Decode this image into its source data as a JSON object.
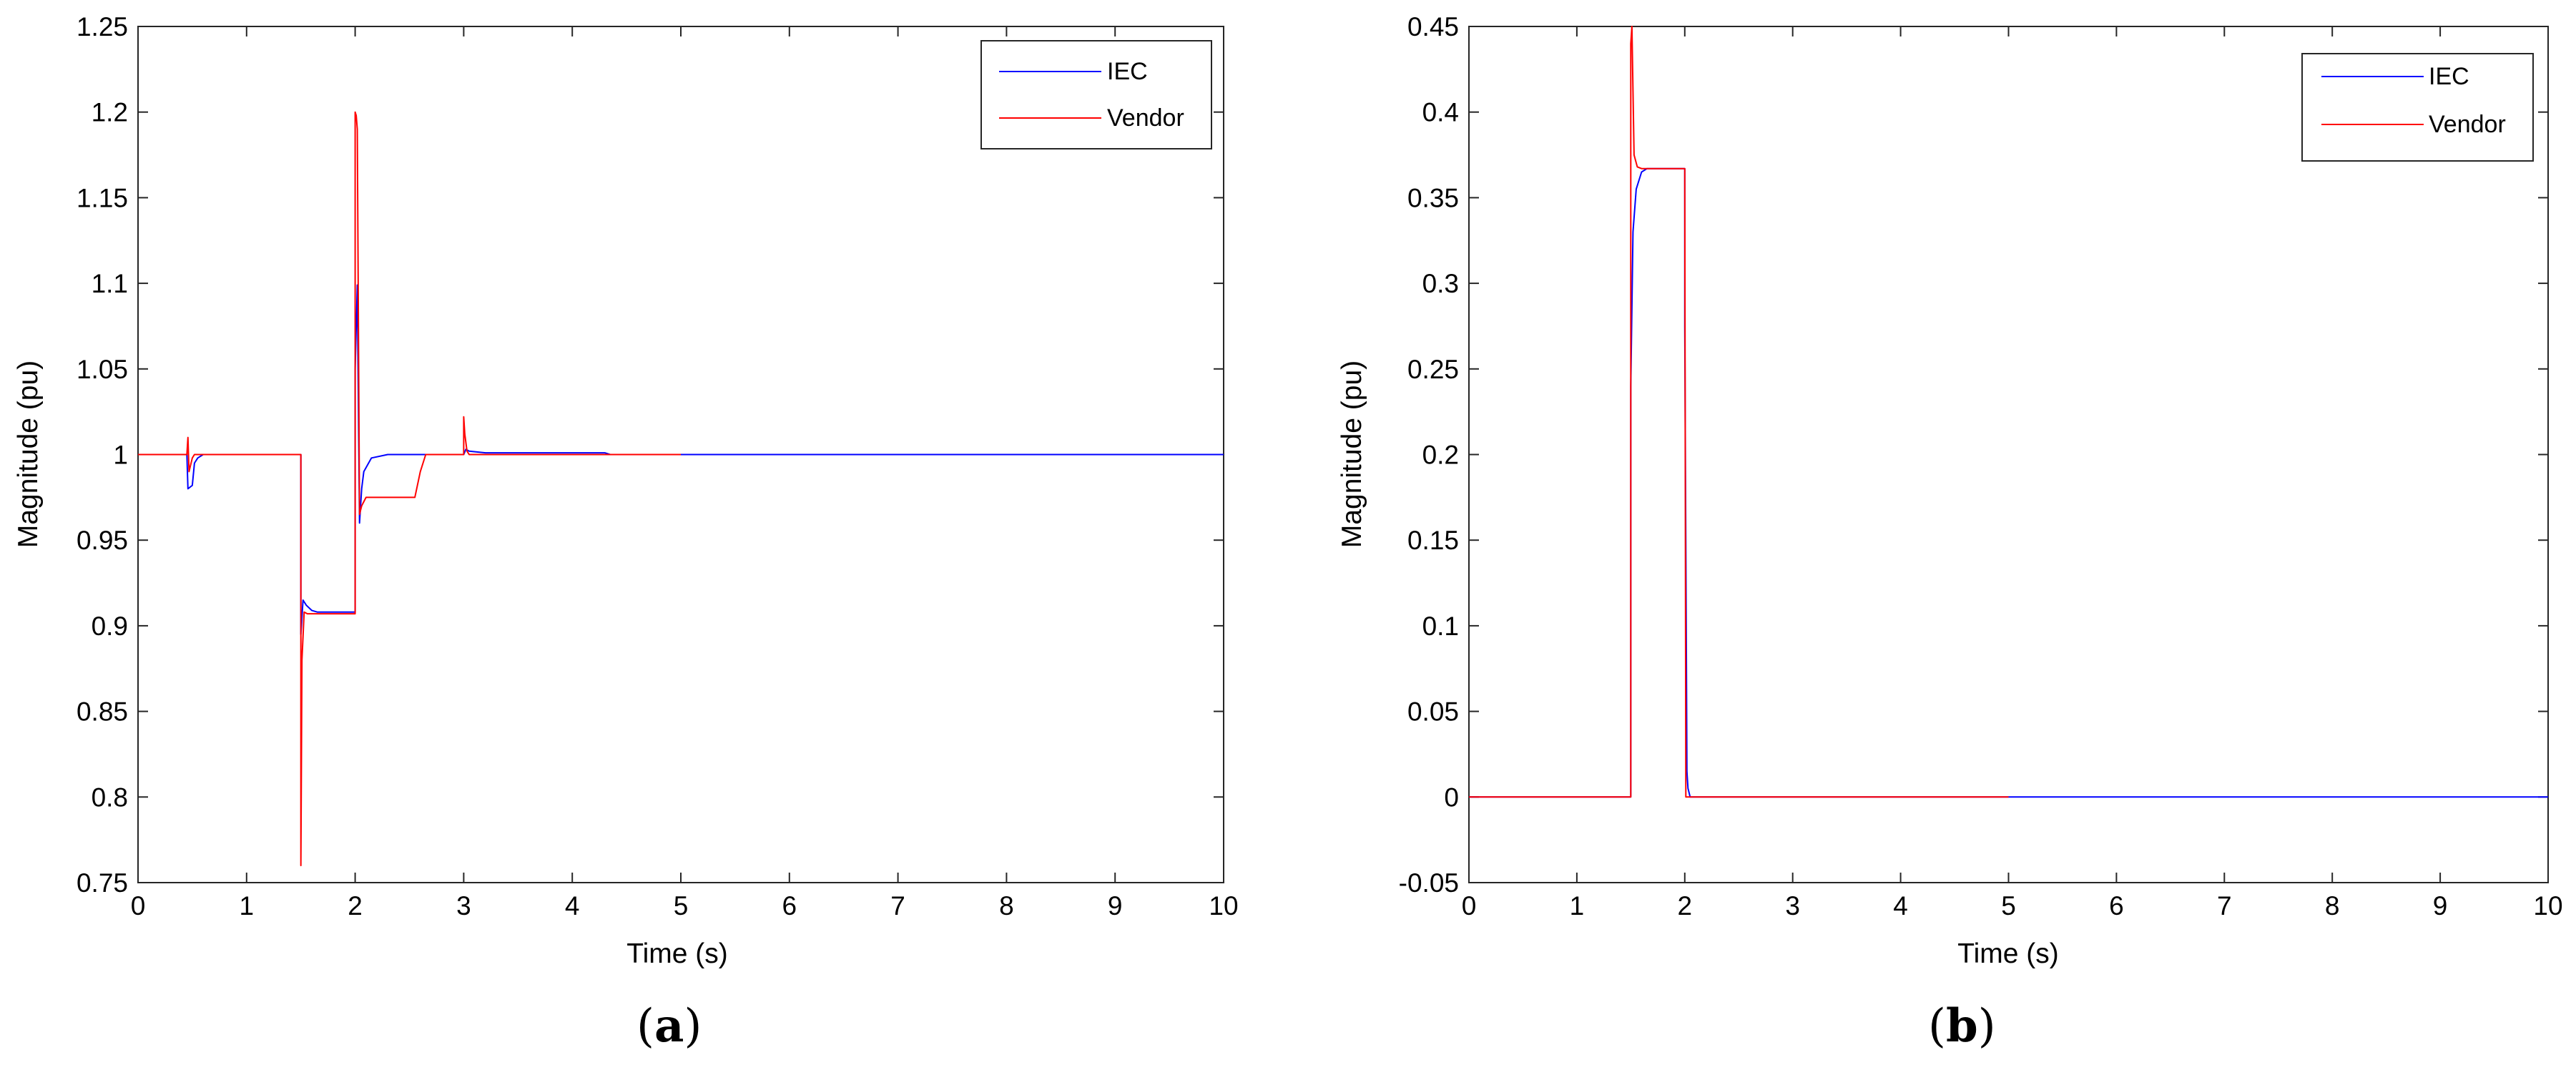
{
  "chart_data": [
    {
      "type": "line",
      "panel_label": "a",
      "xlabel": "Time (s)",
      "ylabel": "Magnitude (pu)",
      "xlim": [
        0,
        10
      ],
      "ylim": [
        0.75,
        1.25
      ],
      "xticks": [
        "0",
        "1",
        "2",
        "3",
        "4",
        "5",
        "6",
        "7",
        "8",
        "9",
        "10"
      ],
      "yticks": [
        "0.75",
        "0.8",
        "0.85",
        "0.9",
        "0.95",
        "1",
        "1.05",
        "1.1",
        "1.15",
        "1.2",
        "1.25"
      ],
      "grid": false,
      "legend": "top-right",
      "series": [
        {
          "name": "IEC",
          "color": "#0000ff",
          "x": [
            0,
            0.1,
            0.45,
            0.46,
            0.5,
            0.52,
            0.55,
            0.6,
            1.0,
            1.2,
            1.5,
            1.5,
            1.52,
            1.55,
            1.6,
            1.65,
            2.0,
            2.0,
            2.02,
            2.04,
            2.06,
            2.08,
            2.15,
            2.3,
            2.5,
            3.0,
            3.02,
            3.05,
            3.2,
            4.3,
            4.35,
            5.0,
            10.0
          ],
          "y": [
            1.0,
            1.0,
            1.0,
            0.98,
            0.982,
            0.995,
            0.998,
            1.0,
            1.0,
            1.0,
            1.0,
            0.895,
            0.915,
            0.912,
            0.909,
            0.908,
            0.908,
            1.05,
            1.099,
            0.96,
            0.98,
            0.99,
            0.998,
            1.0,
            1.0,
            1.0,
            1.003,
            1.002,
            1.001,
            1.001,
            1.0,
            1.0,
            1.0
          ]
        },
        {
          "name": "Vendor",
          "color": "#ff0000",
          "x": [
            0,
            0.45,
            0.46,
            0.47,
            0.5,
            0.52,
            0.55,
            1.0,
            1.5,
            1.5,
            1.51,
            1.53,
            1.56,
            1.6,
            1.65,
            2.0,
            2.0,
            2.01,
            2.02,
            2.04,
            2.06,
            2.1,
            2.2,
            2.55,
            2.6,
            2.65,
            3.0,
            3.0,
            3.01,
            3.03,
            3.05,
            5.0
          ],
          "y": [
            1.0,
            1.0,
            1.01,
            0.99,
            0.998,
            1.0,
            1.0,
            1.0,
            1.0,
            0.76,
            0.88,
            0.908,
            0.907,
            0.907,
            0.907,
            0.907,
            1.2,
            1.198,
            1.19,
            0.965,
            0.97,
            0.975,
            0.975,
            0.975,
            0.99,
            1.0,
            1.0,
            1.022,
            1.012,
            1.002,
            1.0,
            1.0
          ]
        }
      ]
    },
    {
      "type": "line",
      "panel_label": "b",
      "xlabel": "Time (s)",
      "ylabel": "Magnitude (pu)",
      "xlim": [
        0,
        10
      ],
      "ylim": [
        -0.05,
        0.45
      ],
      "xticks": [
        "0",
        "1",
        "2",
        "3",
        "4",
        "5",
        "6",
        "7",
        "8",
        "9",
        "10"
      ],
      "yticks": [
        "-0.05",
        "0",
        "0.05",
        "0.1",
        "0.15",
        "0.2",
        "0.25",
        "0.3",
        "0.35",
        "0.4",
        "0.45"
      ],
      "grid": false,
      "legend": "top-right",
      "series": [
        {
          "name": "IEC",
          "color": "#0000ff",
          "x": [
            0,
            1.5,
            1.5,
            1.52,
            1.55,
            1.6,
            1.65,
            1.7,
            2.0,
            2.0,
            2.02,
            2.03,
            2.05,
            2.1,
            10.0
          ],
          "y": [
            0.0,
            0.0,
            0.24,
            0.33,
            0.355,
            0.365,
            0.367,
            0.367,
            0.367,
            0.275,
            0.015,
            0.005,
            0.0,
            0.0,
            0.0
          ]
        },
        {
          "name": "Vendor",
          "color": "#ff0000",
          "x": [
            0,
            1.5,
            1.5,
            1.51,
            1.53,
            1.56,
            1.6,
            2.0,
            2.0,
            2.01,
            2.03,
            5.0
          ],
          "y": [
            0.0,
            0.0,
            0.44,
            0.45,
            0.375,
            0.368,
            0.367,
            0.367,
            0.36,
            0.0,
            0.0,
            0.0
          ]
        }
      ]
    }
  ]
}
